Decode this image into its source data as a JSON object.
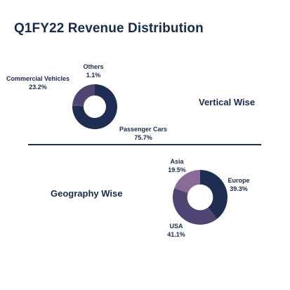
{
  "header": {
    "title": "Q1FY22 Revenue Distribution"
  },
  "chart_data": [
    {
      "type": "pie",
      "title": "Vertical Wise",
      "donut": true,
      "slices": [
        {
          "label": "Passenger Cars",
          "value": 75.7,
          "display": "75.7%",
          "color": "#1e2d52"
        },
        {
          "label": "Others",
          "value": 1.1,
          "display": "1.1%",
          "color": "#5a3f73"
        },
        {
          "label": "Commercial Vehicles",
          "value": 23.2,
          "display": "23.2%",
          "color": "#4f4472"
        }
      ]
    },
    {
      "type": "pie",
      "title": "Geography Wise",
      "donut": true,
      "slices": [
        {
          "label": "Europe",
          "value": 39.3,
          "display": "39.3%",
          "color": "#1e2d52"
        },
        {
          "label": "USA",
          "value": 41.1,
          "display": "41.1%",
          "color": "#4f4472"
        },
        {
          "label": "Asia",
          "value": 19.5,
          "display": "19.5%",
          "color": "#8a6a96"
        }
      ]
    }
  ]
}
